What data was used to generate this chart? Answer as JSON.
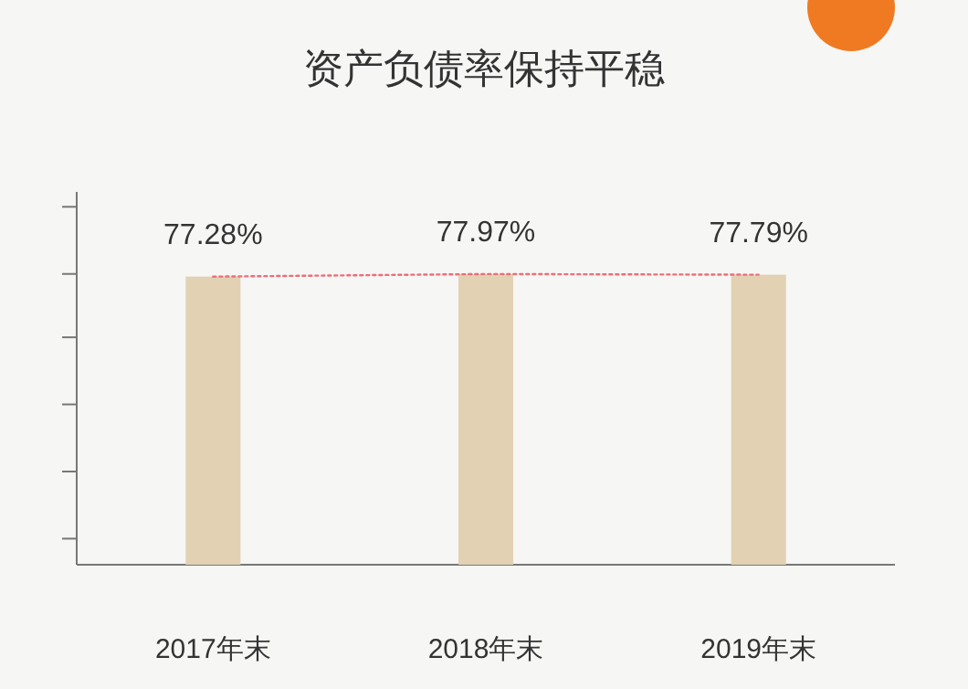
{
  "chart_data": {
    "type": "bar",
    "title": "资产负债率保持平稳",
    "categories": [
      "2017年末",
      "2018年末",
      "2019年末"
    ],
    "series": [
      {
        "color": "#e2d1b3",
        "values": [
          77.28,
          77.97,
          77.79
        ],
        "value_labels": [
          "77.28%",
          "77.97%",
          "77.79%"
        ]
      },
      {
        "type": "line",
        "color": "#e8707a",
        "line_style": "dotted",
        "marker": "none",
        "values": [
          77.28,
          77.97,
          77.79
        ]
      }
    ],
    "ylim": [
      0,
      100
    ],
    "yticks": [
      {
        "value": 7,
        "label": null
      },
      {
        "value": 25,
        "label": null
      },
      {
        "value": 43,
        "label": null
      },
      {
        "value": 61,
        "label": null
      },
      {
        "value": 78,
        "label": null
      },
      {
        "value": 96,
        "label": null
      }
    ],
    "tick_labels": "x",
    "grid": false
  }
}
